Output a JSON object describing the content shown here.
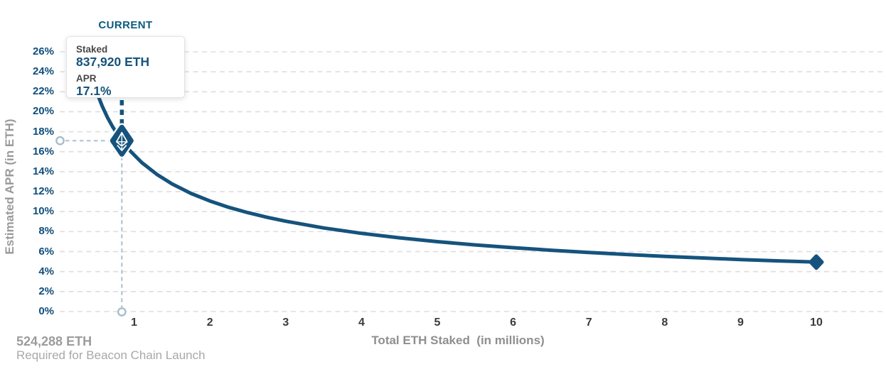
{
  "current_label": "CURRENT",
  "tooltip": {
    "staked_label": "Staked",
    "staked_value": "837,920 ETH",
    "apr_label": "APR",
    "apr_value": "17.1%"
  },
  "footnote": {
    "line1": "524,288 ETH",
    "line2": "Required for Beacon Chain Launch"
  },
  "colors": {
    "primary": "#15537d",
    "y_tick": "#0f4e7c",
    "x_tick": "#3b3b3b",
    "grid": "#dedede",
    "helper_line": "#b5c7d4",
    "helper_circle": "#a3bccd",
    "marker_glyph": "#ffffff"
  },
  "chart_data": {
    "type": "line",
    "title": "",
    "xlabel": "Total ETH Staked  (in millions)",
    "ylabel": "Estimated APR (in ETH)",
    "xlim": [
      0,
      10.88
    ],
    "ylim": [
      0,
      26
    ],
    "grid": "horizontal-dashed",
    "x_ticks": [
      {
        "v": 1,
        "label": "1"
      },
      {
        "v": 2,
        "label": "2"
      },
      {
        "v": 3,
        "label": "3"
      },
      {
        "v": 4,
        "label": "4"
      },
      {
        "v": 5,
        "label": "5"
      },
      {
        "v": 6,
        "label": "6"
      },
      {
        "v": 7,
        "label": "7"
      },
      {
        "v": 8,
        "label": "8"
      },
      {
        "v": 9,
        "label": "9"
      },
      {
        "v": 10,
        "label": "10"
      }
    ],
    "y_ticks": [
      {
        "v": 0,
        "label": "0%"
      },
      {
        "v": 2,
        "label": "2%"
      },
      {
        "v": 4,
        "label": "4%"
      },
      {
        "v": 6,
        "label": "6%"
      },
      {
        "v": 8,
        "label": "8%"
      },
      {
        "v": 10,
        "label": "10%"
      },
      {
        "v": 12,
        "label": "12%"
      },
      {
        "v": 14,
        "label": "14%"
      },
      {
        "v": 16,
        "label": "16%"
      },
      {
        "v": 18,
        "label": "18%"
      },
      {
        "v": 20,
        "label": "20%"
      },
      {
        "v": 22,
        "label": "22%"
      },
      {
        "v": 24,
        "label": "24%"
      },
      {
        "v": 26,
        "label": "26%"
      }
    ],
    "series": [
      {
        "name": "Estimated APR (in ETH)",
        "points": [
          [
            0.524,
            21.62
          ],
          [
            0.58,
            20.55
          ],
          [
            0.65,
            19.41
          ],
          [
            0.72,
            18.45
          ],
          [
            0.838,
            17.1
          ],
          [
            0.95,
            16.06
          ],
          [
            1.1,
            14.92
          ],
          [
            1.3,
            13.73
          ],
          [
            1.5,
            12.78
          ],
          [
            1.75,
            11.83
          ],
          [
            2,
            11.07
          ],
          [
            2.25,
            10.43
          ],
          [
            2.5,
            9.9
          ],
          [
            2.75,
            9.44
          ],
          [
            3,
            9.04
          ],
          [
            3.5,
            8.37
          ],
          [
            4,
            7.83
          ],
          [
            4.5,
            7.38
          ],
          [
            5,
            7.0
          ],
          [
            5.5,
            6.67
          ],
          [
            6,
            6.39
          ],
          [
            6.5,
            6.14
          ],
          [
            7,
            5.92
          ],
          [
            7.5,
            5.71
          ],
          [
            8,
            5.53
          ],
          [
            8.5,
            5.36
          ],
          [
            9,
            5.21
          ],
          [
            9.5,
            5.07
          ],
          [
            10,
            4.95
          ]
        ]
      }
    ],
    "current_point": {
      "x_millions": 0.838,
      "apr_percent": 17.1,
      "staked": "837,920 ETH"
    },
    "end_point": {
      "x_millions": 10,
      "apr_percent": 4.95
    },
    "launch_requirement": {
      "eth": "524,288 ETH",
      "note": "Required for Beacon Chain Launch"
    }
  }
}
